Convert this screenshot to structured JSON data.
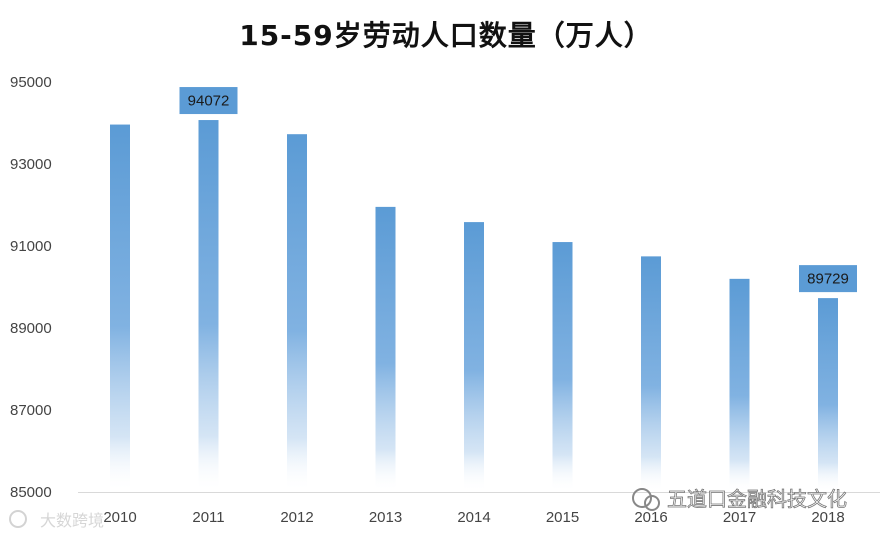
{
  "chart_data": {
    "type": "bar",
    "title": "15-59岁劳动人口数量（万人）",
    "categories": [
      "2010",
      "2011",
      "2012",
      "2013",
      "2014",
      "2015",
      "2016",
      "2017",
      "2018"
    ],
    "values": [
      93962,
      94072,
      93727,
      91954,
      91583,
      91096,
      90747,
      90199,
      89729
    ],
    "ylim": [
      85000,
      95000
    ],
    "yticks": [
      "85000",
      "87000",
      "89000",
      "91000",
      "93000",
      "95000"
    ],
    "data_labels": [
      {
        "category": "2011",
        "text": "94072"
      },
      {
        "category": "2018",
        "text": "89729"
      }
    ],
    "grid": false,
    "bar_color": "#5b9bd5",
    "label_bg_color": "#5b9bd5"
  },
  "watermarks": {
    "left": "大数跨境",
    "right": "五道口金融科技文化"
  }
}
